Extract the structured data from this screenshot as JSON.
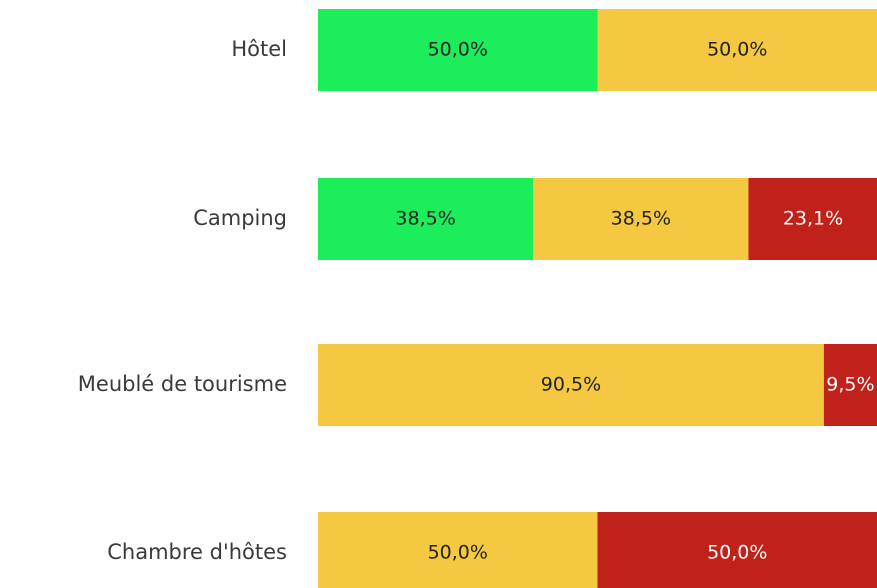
{
  "chart_data": {
    "type": "stacked-bar-horizontal",
    "categories": [
      "Hôtel",
      "Camping",
      "Meublé de tourisme",
      "Chambre d'hôtes"
    ],
    "xlim": [
      0,
      100
    ],
    "series": [
      {
        "color": "#1ced5a",
        "values": [
          50.0,
          38.5,
          null,
          null
        ],
        "value_labels": [
          "50,0%",
          "38,5%",
          null,
          null
        ],
        "label_color": "#222222"
      },
      {
        "color": "#f5c842",
        "values": [
          50.0,
          38.5,
          90.5,
          50.0
        ],
        "value_labels": [
          "50,0%",
          "38,5%",
          "90,5%",
          "50,0%"
        ],
        "label_color": "#222222"
      },
      {
        "color": "#c0211a",
        "values": [
          null,
          23.1,
          9.5,
          50.0
        ],
        "value_labels": [
          null,
          "23,1%",
          "9,5%",
          "50,0%"
        ],
        "label_color": "#ffffff"
      }
    ]
  }
}
